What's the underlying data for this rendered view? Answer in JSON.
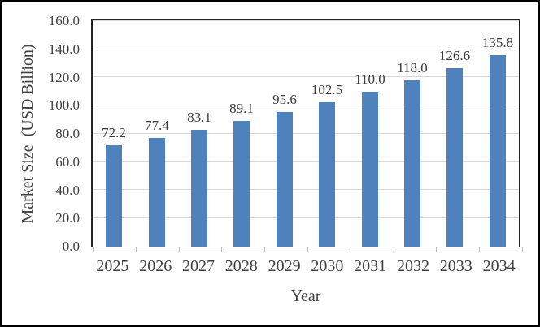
{
  "chart_data": {
    "type": "bar",
    "title": "",
    "categories": [
      "2025",
      "2026",
      "2027",
      "2028",
      "2029",
      "2030",
      "2031",
      "2032",
      "2033",
      "2034"
    ],
    "values": [
      72.2,
      77.4,
      83.1,
      89.1,
      95.6,
      102.5,
      110.0,
      118.0,
      126.6,
      135.8
    ],
    "value_labels": [
      "72.2",
      "77.4",
      "83.1",
      "89.1",
      "95.6",
      "102.5",
      "110.0",
      "118.0",
      "126.6",
      "135.8"
    ],
    "xlabel": "Year",
    "ylabel": "Market Size  (USD Billion)",
    "ylim": [
      0,
      160
    ],
    "ytick_step": 20,
    "ytick_labels": [
      "0.0",
      "20.0",
      "40.0",
      "60.0",
      "80.0",
      "100.0",
      "120.0",
      "140.0",
      "160.0"
    ],
    "grid": true,
    "legend": false,
    "colors": {
      "bar": "#4F81BD",
      "gridline": "#D9D9D9",
      "axis_line": "#BFBFBF",
      "plot_border": "#262626",
      "text": "#404040",
      "frame_border": "#000000"
    }
  }
}
